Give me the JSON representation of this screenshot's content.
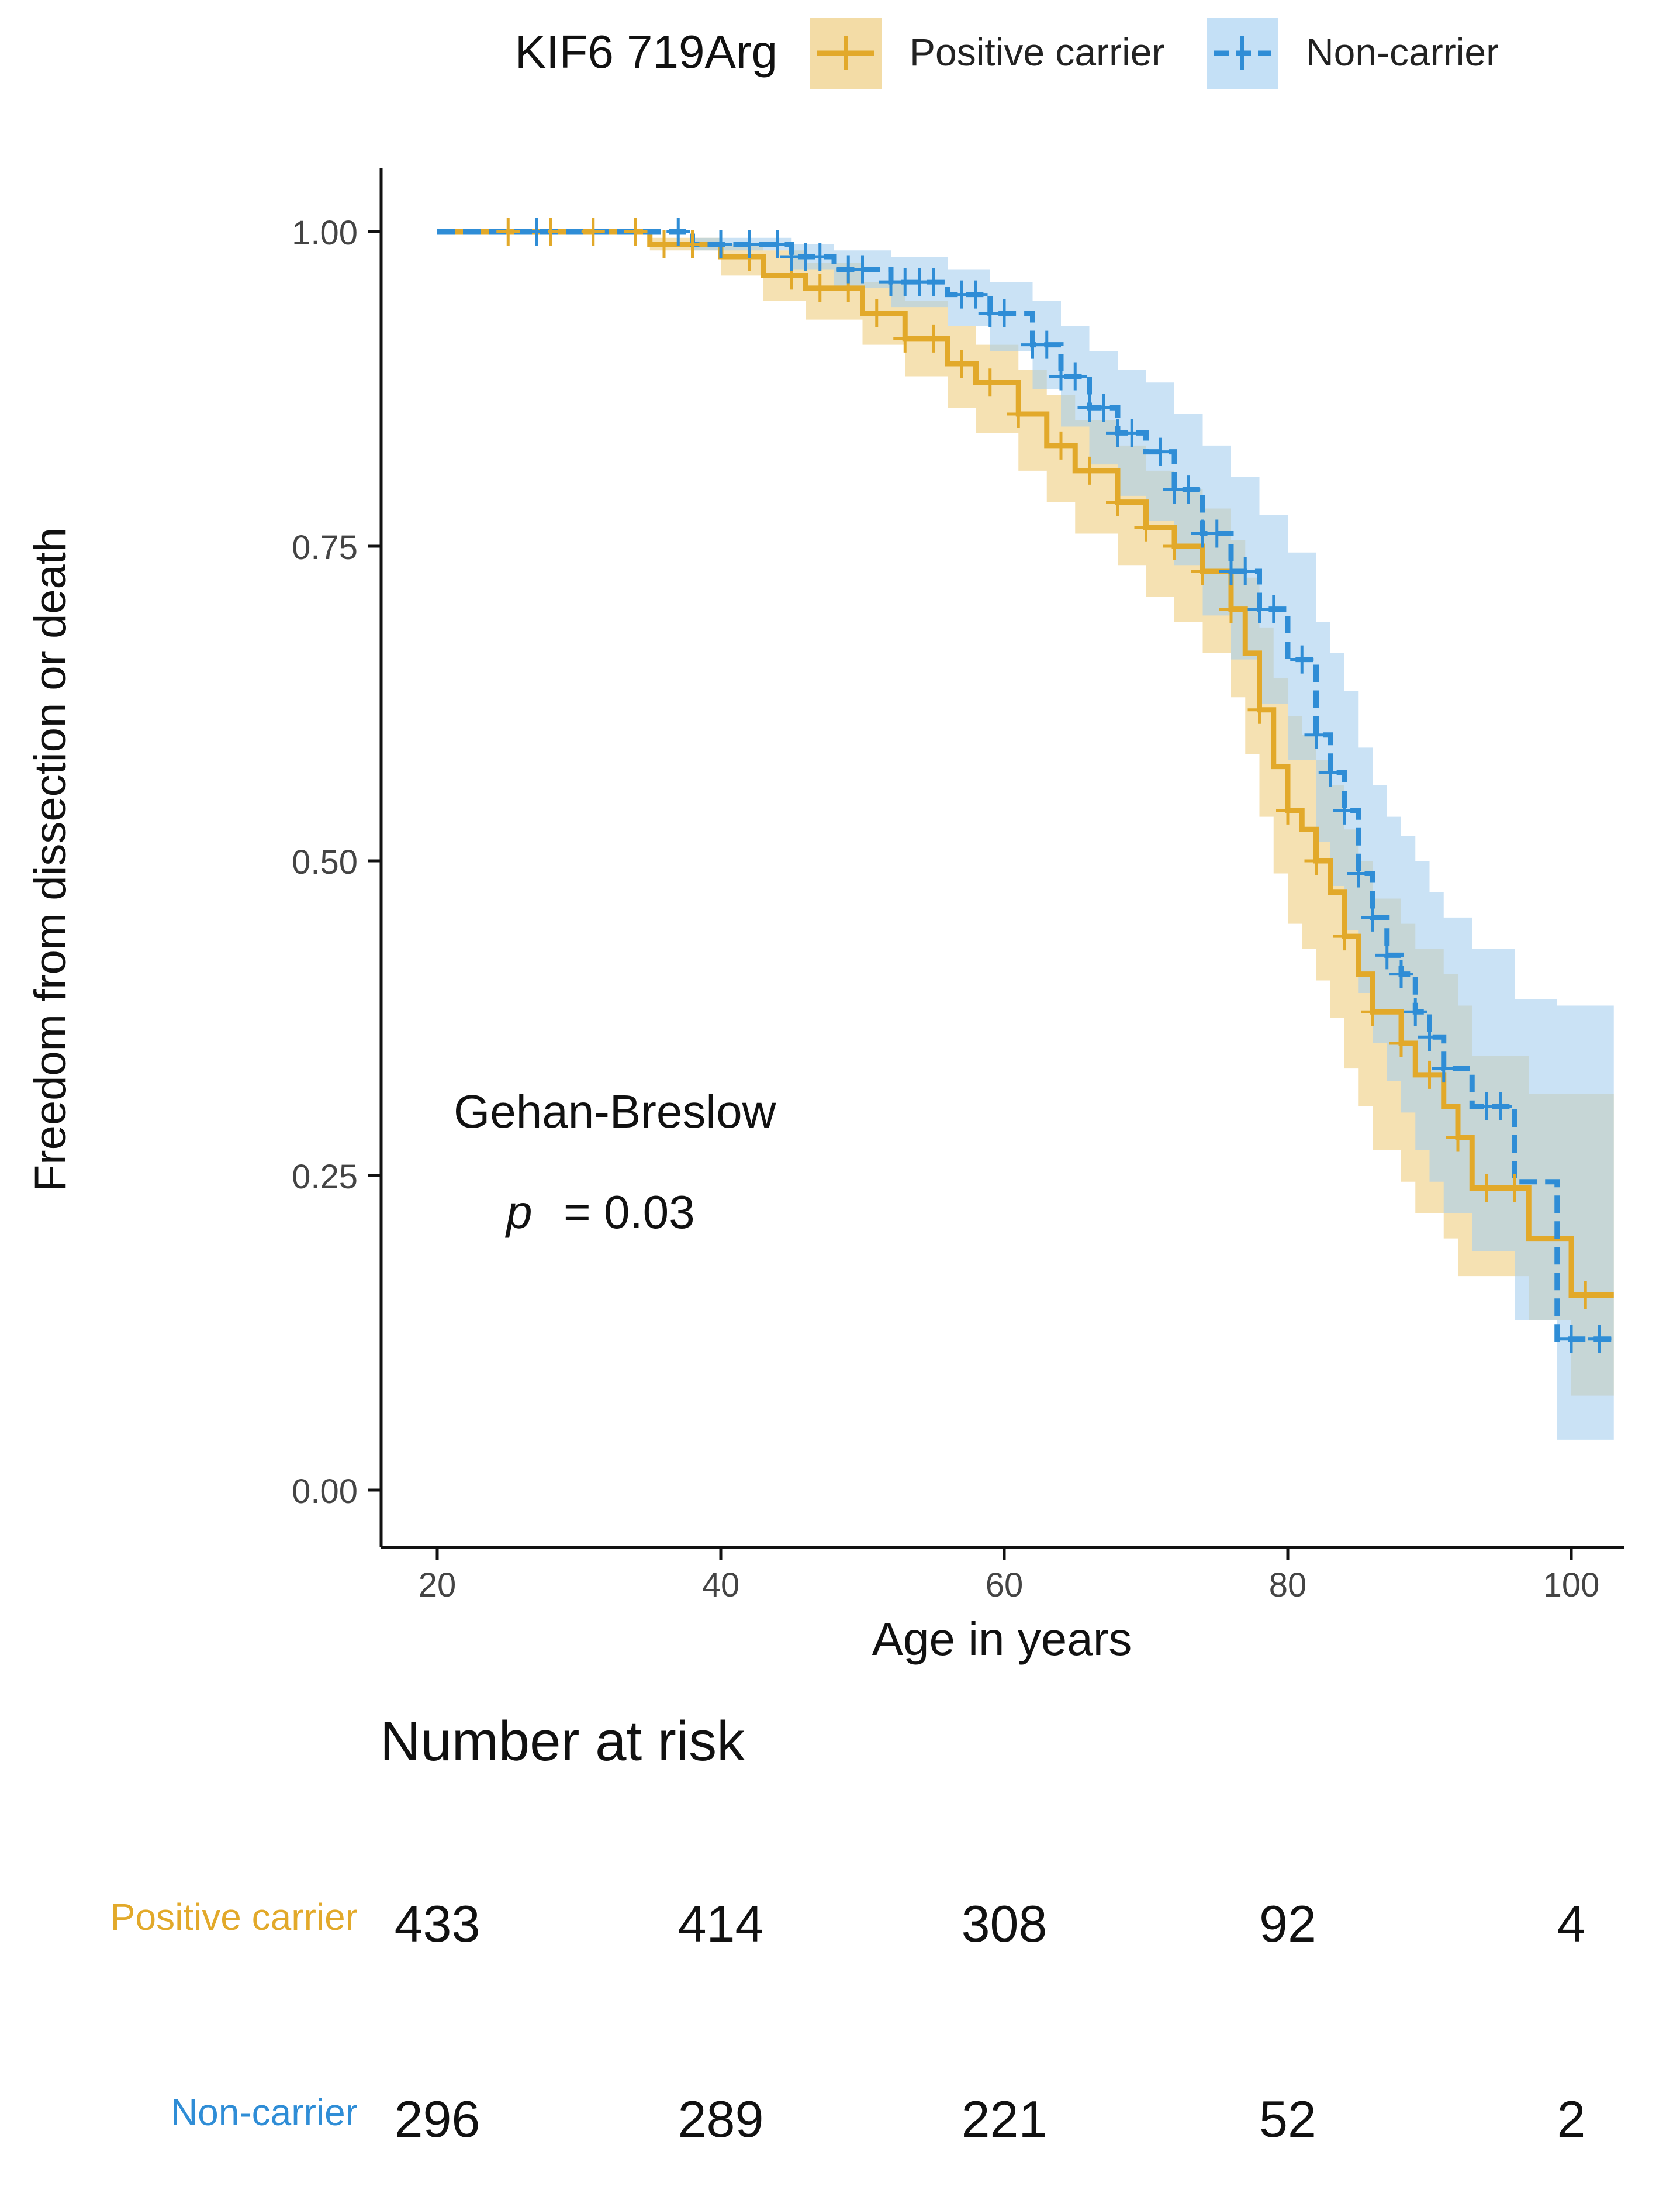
{
  "chart_data": {
    "type": "kaplan-meier",
    "legend": {
      "title": "KIF6 719Arg",
      "entries": [
        "Positive carrier",
        "Non-carrier"
      ],
      "placement": "top"
    },
    "xlabel": "Age in years",
    "ylabel": "Freedom from dissection or death",
    "xlim": [
      16,
      104
    ],
    "ylim": [
      0,
      1.05
    ],
    "xticks": [
      "20",
      "40",
      "60",
      "80",
      "100"
    ],
    "xtick_values": [
      20,
      40,
      60,
      80,
      100
    ],
    "yticks": [
      "0.00",
      "0.25",
      "0.50",
      "0.75",
      "1.00"
    ],
    "ytick_values": [
      0,
      0.25,
      0.5,
      0.75,
      1.0
    ],
    "annotation": {
      "test": "Gehan-Breslow",
      "p_symbol": "p",
      "p_value": "= 0.03"
    },
    "series": [
      {
        "name": "Positive carrier",
        "color": "#E2A92A",
        "band_color": "#EFCD7E",
        "line_style": "solid",
        "x": [
          20,
          35,
          40,
          43,
          46,
          50,
          53,
          56,
          58,
          61,
          63,
          65,
          68,
          70,
          72,
          74,
          76,
          77,
          78,
          79,
          80,
          81,
          82,
          83,
          84,
          85,
          86,
          88,
          89,
          91,
          92,
          93,
          97,
          99,
          100,
          103
        ],
        "y": [
          1.0,
          0.99,
          0.98,
          0.965,
          0.955,
          0.935,
          0.915,
          0.895,
          0.88,
          0.855,
          0.83,
          0.81,
          0.785,
          0.765,
          0.75,
          0.73,
          0.7,
          0.665,
          0.62,
          0.575,
          0.54,
          0.525,
          0.5,
          0.475,
          0.44,
          0.41,
          0.38,
          0.355,
          0.33,
          0.305,
          0.28,
          0.24,
          0.2,
          0.2,
          0.155,
          0.155
        ],
        "ci_low": [
          1.0,
          0.985,
          0.965,
          0.945,
          0.93,
          0.91,
          0.885,
          0.86,
          0.84,
          0.81,
          0.785,
          0.76,
          0.735,
          0.71,
          0.69,
          0.665,
          0.63,
          0.585,
          0.535,
          0.49,
          0.45,
          0.43,
          0.405,
          0.375,
          0.335,
          0.305,
          0.27,
          0.245,
          0.22,
          0.2,
          0.17,
          0.17,
          0.135,
          0.135,
          0.075,
          0.075
        ],
        "ci_high": [
          1.0,
          0.995,
          0.99,
          0.985,
          0.975,
          0.96,
          0.945,
          0.925,
          0.91,
          0.89,
          0.87,
          0.85,
          0.83,
          0.81,
          0.795,
          0.78,
          0.755,
          0.725,
          0.685,
          0.645,
          0.615,
          0.6,
          0.58,
          0.56,
          0.525,
          0.5,
          0.47,
          0.45,
          0.43,
          0.41,
          0.385,
          0.345,
          0.315,
          0.315,
          0.315,
          0.315
        ],
        "censor_x": [
          25,
          28,
          31,
          34,
          36,
          38,
          42,
          45,
          47,
          49,
          51,
          53,
          55,
          57,
          59,
          61,
          64,
          66,
          68,
          70,
          72,
          74,
          76,
          78,
          80,
          82,
          84,
          86,
          88,
          90,
          92,
          94,
          96,
          101
        ]
      },
      {
        "name": "Non-carrier",
        "color": "#2F8DD6",
        "band_color": "#A6CFEF",
        "line_style": "dashed",
        "x": [
          20,
          38,
          45,
          48,
          52,
          56,
          59,
          62,
          64,
          66,
          68,
          70,
          72,
          74,
          76,
          78,
          80,
          82,
          83,
          84,
          85,
          86,
          87,
          88,
          89,
          90,
          91,
          93,
          96,
          99,
          103
        ],
        "y": [
          1.0,
          0.99,
          0.98,
          0.97,
          0.96,
          0.95,
          0.935,
          0.91,
          0.885,
          0.86,
          0.84,
          0.825,
          0.795,
          0.76,
          0.73,
          0.7,
          0.66,
          0.6,
          0.57,
          0.54,
          0.49,
          0.455,
          0.425,
          0.41,
          0.38,
          0.36,
          0.335,
          0.305,
          0.245,
          0.12,
          0.12
        ],
        "ci_low": [
          1.0,
          0.985,
          0.97,
          0.955,
          0.94,
          0.925,
          0.905,
          0.875,
          0.845,
          0.815,
          0.79,
          0.77,
          0.735,
          0.695,
          0.66,
          0.625,
          0.58,
          0.515,
          0.48,
          0.445,
          0.395,
          0.355,
          0.325,
          0.3,
          0.27,
          0.245,
          0.22,
          0.19,
          0.135,
          0.04,
          0.04
        ],
        "ci_high": [
          1.0,
          0.995,
          0.99,
          0.985,
          0.98,
          0.97,
          0.96,
          0.945,
          0.925,
          0.905,
          0.89,
          0.88,
          0.855,
          0.83,
          0.805,
          0.775,
          0.745,
          0.69,
          0.665,
          0.635,
          0.59,
          0.56,
          0.535,
          0.52,
          0.5,
          0.475,
          0.455,
          0.43,
          0.39,
          0.385,
          0.385
        ],
        "censor_x": [
          27,
          37,
          40,
          42,
          44,
          45,
          46,
          47,
          49,
          50,
          52,
          53,
          54,
          55,
          57,
          58,
          59,
          60,
          62,
          63,
          64,
          65,
          66,
          67,
          68,
          69,
          71,
          72,
          73,
          74,
          75,
          76,
          77,
          78,
          79,
          81,
          82,
          83,
          84,
          85,
          86,
          87,
          88,
          89,
          90,
          91,
          94,
          95,
          100,
          102
        ]
      }
    ],
    "risk_table": {
      "title": "Number at risk",
      "time_points": [
        20,
        40,
        60,
        80,
        100
      ],
      "rows": [
        {
          "label": "Positive carrier",
          "values": [
            "433",
            "414",
            "308",
            "92",
            "4"
          ]
        },
        {
          "label": "Non-carrier",
          "values": [
            "296",
            "289",
            "221",
            "52",
            "2"
          ]
        }
      ]
    }
  }
}
